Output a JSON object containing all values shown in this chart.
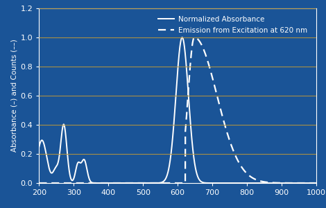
{
  "bg_color": "#1a5497",
  "plot_bg_color": "#1a5497",
  "line_color": "#ffffff",
  "grid_color": "#b8963c",
  "xlabel": "",
  "ylabel": "Absorbance (–) and Counts (––)",
  "xlim": [
    200,
    1000
  ],
  "ylim": [
    0.0,
    1.2
  ],
  "xticks": [
    200,
    300,
    400,
    500,
    600,
    700,
    800,
    900,
    1000
  ],
  "yticks": [
    0.0,
    0.2,
    0.4,
    0.6,
    0.8,
    1.0,
    1.2
  ],
  "legend_labels": [
    "Normalized Absorbance",
    "Emission from Excitation at 620 nm"
  ],
  "tick_color": "#ffffff",
  "label_color": "#ffffff",
  "figsize": [
    4.7,
    3.0
  ],
  "dpi": 100
}
